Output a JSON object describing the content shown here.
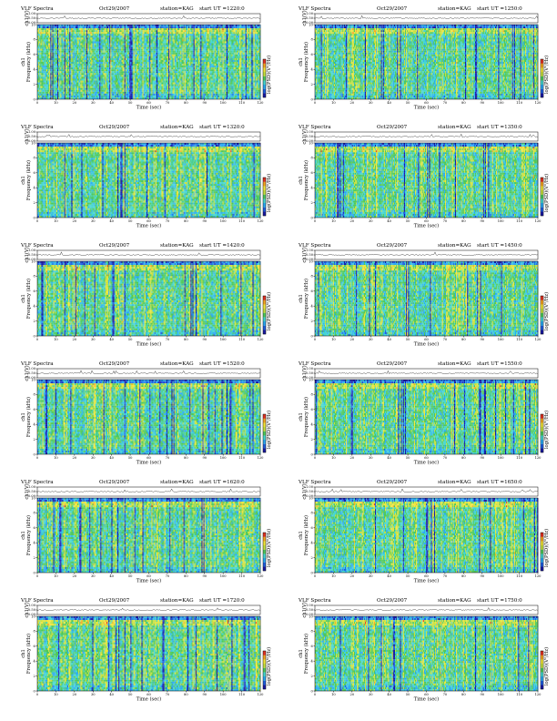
{
  "colorbar": {
    "label": "log(PSD)(V²/Hz)",
    "colors": [
      "#1a1aa6",
      "#1f5fe0",
      "#2aa9f2",
      "#45d6d0",
      "#4fc95a",
      "#c6e040",
      "#f2e63a",
      "#f5a623",
      "#e53222"
    ]
  },
  "chart_data": [
    {
      "type": "heatmap",
      "title": "VLF Spectra",
      "date": "Oct29/2007",
      "station": "station=KAG",
      "start_ut_label": "start UT =1220:0",
      "top_ylabel": "ch1(V)",
      "top_yticks": [
        "0.00",
        "0.50",
        "1.00"
      ],
      "xlabel": "Time (sec)",
      "ylabel": "Frequency (kHz)",
      "ch_label": "ch1",
      "xlim": [
        0,
        120
      ],
      "ylim": [
        0,
        10
      ],
      "xticks": [
        "0",
        "10",
        "20",
        "30",
        "40",
        "50",
        "60",
        "70",
        "80",
        "90",
        "100",
        "110",
        "120"
      ],
      "yticks": [
        "0",
        "2",
        "4",
        "6",
        "8",
        "10"
      ]
    },
    {
      "type": "heatmap",
      "title": "VLF Spectra",
      "date": "Oct29/2007",
      "station": "station=KAG",
      "start_ut_label": "start UT =1250:0",
      "top_ylabel": "ch1(V)",
      "top_yticks": [
        "0.00",
        "0.50",
        "1.00"
      ],
      "xlabel": "Time (sec)",
      "ylabel": "Frequency (kHz)",
      "ch_label": "ch1",
      "xlim": [
        0,
        120
      ],
      "ylim": [
        0,
        10
      ],
      "xticks": [
        "0",
        "10",
        "20",
        "30",
        "40",
        "50",
        "60",
        "70",
        "80",
        "90",
        "100",
        "110",
        "120"
      ],
      "yticks": [
        "0",
        "2",
        "4",
        "6",
        "8",
        "10"
      ]
    },
    {
      "type": "heatmap",
      "title": "VLF Spectra",
      "date": "Oct29/2007",
      "station": "station=KAG",
      "start_ut_label": "start UT =1320:0",
      "top_ylabel": "ch1(V)",
      "top_yticks": [
        "0.00",
        "0.50",
        "1.00"
      ],
      "xlabel": "Time (sec)",
      "ylabel": "Frequency (kHz)",
      "ch_label": "ch1",
      "xlim": [
        0,
        120
      ],
      "ylim": [
        0,
        10
      ],
      "xticks": [
        "0",
        "10",
        "20",
        "30",
        "40",
        "50",
        "60",
        "70",
        "80",
        "90",
        "100",
        "110",
        "120"
      ],
      "yticks": [
        "0",
        "2",
        "4",
        "6",
        "8",
        "10"
      ]
    },
    {
      "type": "heatmap",
      "title": "VLF Spectra",
      "date": "Oct29/2007",
      "station": "station=KAG",
      "start_ut_label": "start UT =1350:0",
      "top_ylabel": "ch1(V)",
      "top_yticks": [
        "0.00",
        "0.50",
        "1.00"
      ],
      "xlabel": "Time (sec)",
      "ylabel": "Frequency (kHz)",
      "ch_label": "ch1",
      "xlim": [
        0,
        120
      ],
      "ylim": [
        0,
        10
      ],
      "xticks": [
        "0",
        "10",
        "20",
        "30",
        "40",
        "50",
        "60",
        "70",
        "80",
        "90",
        "100",
        "110",
        "120"
      ],
      "yticks": [
        "0",
        "2",
        "4",
        "6",
        "8",
        "10"
      ]
    },
    {
      "type": "heatmap",
      "title": "VLF Spectra",
      "date": "Oct29/2007",
      "station": "station=KAG",
      "start_ut_label": "start UT =1420:0",
      "top_ylabel": "ch1(V)",
      "top_yticks": [
        "0.00",
        "0.50",
        "1.00"
      ],
      "xlabel": "Time (sec)",
      "ylabel": "Frequency (kHz)",
      "ch_label": "ch1",
      "xlim": [
        0,
        120
      ],
      "ylim": [
        0,
        10
      ],
      "xticks": [
        "0",
        "10",
        "20",
        "30",
        "40",
        "50",
        "60",
        "70",
        "80",
        "90",
        "100",
        "110",
        "120"
      ],
      "yticks": [
        "0",
        "2",
        "4",
        "6",
        "8",
        "10"
      ]
    },
    {
      "type": "heatmap",
      "title": "VLF Spectra",
      "date": "Oct29/2007",
      "station": "station=KAG",
      "start_ut_label": "start UT =1450:0",
      "top_ylabel": "ch1(V)",
      "top_yticks": [
        "0.00",
        "0.50",
        "1.00"
      ],
      "xlabel": "Time (sec)",
      "ylabel": "Frequency (kHz)",
      "ch_label": "ch1",
      "xlim": [
        0,
        120
      ],
      "ylim": [
        0,
        10
      ],
      "xticks": [
        "0",
        "10",
        "20",
        "30",
        "40",
        "50",
        "60",
        "70",
        "80",
        "90",
        "100",
        "110",
        "120"
      ],
      "yticks": [
        "0",
        "2",
        "4",
        "6",
        "8",
        "10"
      ]
    },
    {
      "type": "heatmap",
      "title": "VLF Spectra",
      "date": "Oct29/2007",
      "station": "station=KAG",
      "start_ut_label": "start UT =1520:0",
      "top_ylabel": "ch1(V)",
      "top_yticks": [
        "0.00",
        "0.50",
        "1.00"
      ],
      "xlabel": "Time (sec)",
      "ylabel": "Frequency (kHz)",
      "ch_label": "ch1",
      "xlim": [
        0,
        120
      ],
      "ylim": [
        0,
        10
      ],
      "xticks": [
        "0",
        "10",
        "20",
        "30",
        "40",
        "50",
        "60",
        "70",
        "80",
        "90",
        "100",
        "110",
        "120"
      ],
      "yticks": [
        "0",
        "2",
        "4",
        "6",
        "8",
        "10"
      ]
    },
    {
      "type": "heatmap",
      "title": "VLF Spectra",
      "date": "Oct29/2007",
      "station": "station=KAG",
      "start_ut_label": "start UT =1550:0",
      "top_ylabel": "ch1(V)",
      "top_yticks": [
        "0.00",
        "0.50",
        "1.00"
      ],
      "xlabel": "Time (sec)",
      "ylabel": "Frequency (kHz)",
      "ch_label": "ch1",
      "xlim": [
        0,
        120
      ],
      "ylim": [
        0,
        10
      ],
      "xticks": [
        "0",
        "10",
        "20",
        "30",
        "40",
        "50",
        "60",
        "70",
        "80",
        "90",
        "100",
        "110",
        "120"
      ],
      "yticks": [
        "0",
        "2",
        "4",
        "6",
        "8",
        "10"
      ]
    },
    {
      "type": "heatmap",
      "title": "VLF Spectra",
      "date": "Oct29/2007",
      "station": "station=KAG",
      "start_ut_label": "start UT =1620:0",
      "top_ylabel": "ch1(V)",
      "top_yticks": [
        "0.00",
        "0.50",
        "1.00"
      ],
      "xlabel": "Time (sec)",
      "ylabel": "Frequency (kHz)",
      "ch_label": "ch1",
      "xlim": [
        0,
        120
      ],
      "ylim": [
        0,
        10
      ],
      "xticks": [
        "0",
        "10",
        "20",
        "30",
        "40",
        "50",
        "60",
        "70",
        "80",
        "90",
        "100",
        "110",
        "120"
      ],
      "yticks": [
        "0",
        "2",
        "4",
        "6",
        "8",
        "10"
      ]
    },
    {
      "type": "heatmap",
      "title": "VLF Spectra",
      "date": "Oct29/2007",
      "station": "station=KAG",
      "start_ut_label": "start UT =1650:0",
      "top_ylabel": "ch1(V)",
      "top_yticks": [
        "0.00",
        "0.50",
        "1.00"
      ],
      "xlabel": "Time (sec)",
      "ylabel": "Frequency (kHz)",
      "ch_label": "ch1",
      "xlim": [
        0,
        120
      ],
      "ylim": [
        0,
        10
      ],
      "xticks": [
        "0",
        "10",
        "20",
        "30",
        "40",
        "50",
        "60",
        "70",
        "80",
        "90",
        "100",
        "110",
        "120"
      ],
      "yticks": [
        "0",
        "2",
        "4",
        "6",
        "8",
        "10"
      ]
    },
    {
      "type": "heatmap",
      "title": "VLF Spectra",
      "date": "Oct29/2007",
      "station": "station=KAG",
      "start_ut_label": "start UT =1720:0",
      "top_ylabel": "ch1(V)",
      "top_yticks": [
        "0.00",
        "0.50",
        "1.00"
      ],
      "xlabel": "Time (sec)",
      "ylabel": "Frequency (kHz)",
      "ch_label": "ch1",
      "xlim": [
        0,
        120
      ],
      "ylim": [
        0,
        10
      ],
      "xticks": [
        "0",
        "10",
        "20",
        "30",
        "40",
        "50",
        "60",
        "70",
        "80",
        "90",
        "100",
        "110",
        "120"
      ],
      "yticks": [
        "0",
        "2",
        "4",
        "6",
        "8",
        "10"
      ]
    },
    {
      "type": "heatmap",
      "title": "VLF Spectra",
      "date": "Oct29/2007",
      "station": "station=KAG",
      "start_ut_label": "start UT =1750:0",
      "top_ylabel": "ch1(V)",
      "top_yticks": [
        "0.00",
        "0.50",
        "1.00"
      ],
      "xlabel": "Time (sec)",
      "ylabel": "Frequency (kHz)",
      "ch_label": "ch1",
      "xlim": [
        0,
        120
      ],
      "ylim": [
        0,
        10
      ],
      "xticks": [
        "0",
        "10",
        "20",
        "30",
        "40",
        "50",
        "60",
        "70",
        "80",
        "90",
        "100",
        "110",
        "120"
      ],
      "yticks": [
        "0",
        "2",
        "4",
        "6",
        "8",
        "10"
      ]
    }
  ]
}
